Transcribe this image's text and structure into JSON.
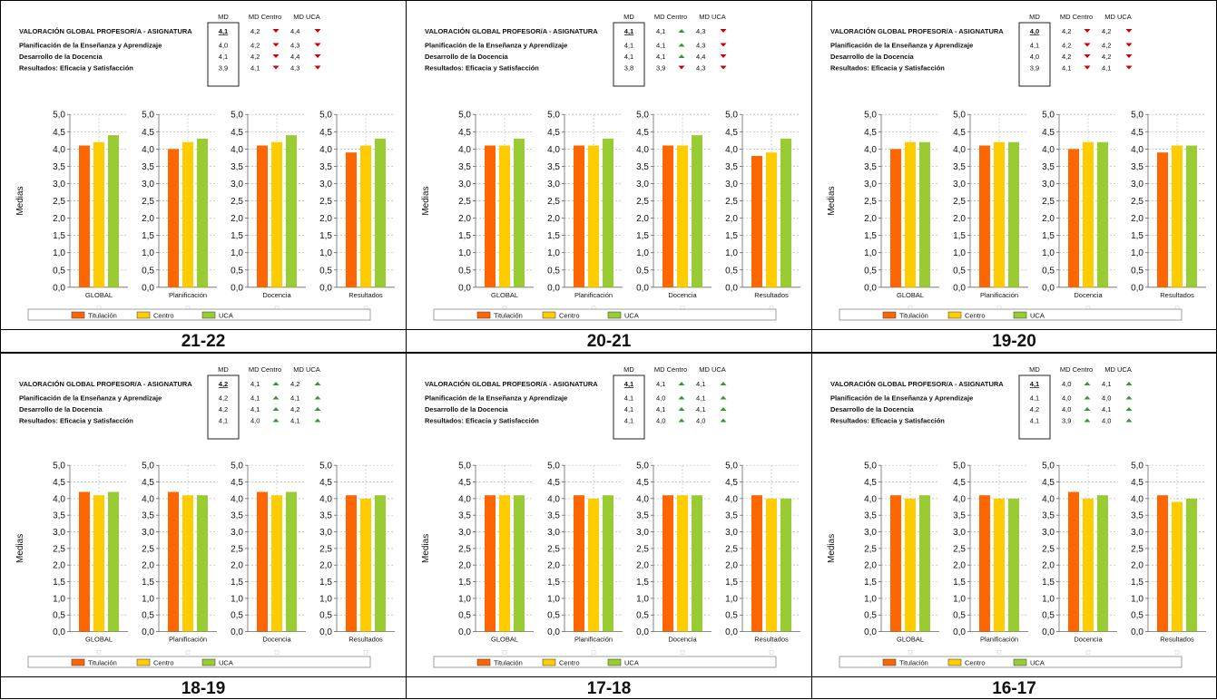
{
  "header_labels": {
    "md": "MD",
    "md_centro": "MD Centro",
    "md_uca": "MD UCA"
  },
  "row_labels": [
    "VALORACIÓN GLOBAL PROFESOR/A - ASIGNATURA",
    "Planificación de la Enseñanza y Aprendizaje",
    "Desarrollo de la Docencia",
    "Resultados: Eficacia y Satisfacción"
  ],
  "y_axis_label": "Medias",
  "placeholder_glyph": "□",
  "colors": {
    "Titulación": "#ff6600",
    "Centro": "#ffcc00",
    "UCA": "#99cc33",
    "arrow_up": "#339933",
    "arrow_down": "#cc0000"
  },
  "chart_data": [
    {
      "type": "bar",
      "year": "21-22",
      "categories": [
        "GLOBAL",
        "Planificación",
        "Docencia",
        "Resultados"
      ],
      "series": [
        {
          "name": "Titulación",
          "values": [
            4.1,
            4.0,
            4.1,
            3.9
          ]
        },
        {
          "name": "Centro",
          "values": [
            4.2,
            4.2,
            4.2,
            4.1
          ]
        },
        {
          "name": "UCA",
          "values": [
            4.4,
            4.3,
            4.4,
            4.3
          ]
        }
      ],
      "table": {
        "md": [
          "4,1",
          "4,0",
          "4,1",
          "3,9"
        ],
        "md_centro": [
          "4,2",
          "4,2",
          "4,2",
          "4,1"
        ],
        "centro_arrow": [
          "down",
          "down",
          "down",
          "down"
        ],
        "md_uca": [
          "4,4",
          "4,3",
          "4,4",
          "4,3"
        ],
        "uca_arrow": [
          "down",
          "down",
          "down",
          "down"
        ]
      },
      "ylim": [
        0,
        5
      ],
      "yticks": [
        "0,0",
        "0,5",
        "1,0",
        "1,5",
        "2,0",
        "2,5",
        "3,0",
        "3,5",
        "4,0",
        "4,5",
        "5,0"
      ],
      "ylabel": "Medias",
      "legend": [
        "Titulación",
        "Centro",
        "UCA"
      ]
    },
    {
      "type": "bar",
      "year": "20-21",
      "categories": [
        "GLOBAL",
        "Planificación",
        "Docencia",
        "Resultados"
      ],
      "series": [
        {
          "name": "Titulación",
          "values": [
            4.1,
            4.1,
            4.1,
            3.8
          ]
        },
        {
          "name": "Centro",
          "values": [
            4.1,
            4.1,
            4.1,
            3.9
          ]
        },
        {
          "name": "UCA",
          "values": [
            4.3,
            4.3,
            4.4,
            4.3
          ]
        }
      ],
      "table": {
        "md": [
          "4,1",
          "4,1",
          "4,1",
          "3,8"
        ],
        "md_centro": [
          "4,1",
          "4,1",
          "4,1",
          "3,9"
        ],
        "centro_arrow": [
          "up",
          "up",
          "up",
          "down"
        ],
        "md_uca": [
          "4,3",
          "4,3",
          "4,4",
          "4,3"
        ],
        "uca_arrow": [
          "down",
          "down",
          "down",
          "down"
        ]
      },
      "ylim": [
        0,
        5
      ],
      "yticks": [
        "0,0",
        "0,5",
        "1,0",
        "1,5",
        "2,0",
        "2,5",
        "3,0",
        "3,5",
        "4,0",
        "4,5",
        "5,0"
      ],
      "ylabel": "Medias",
      "legend": [
        "Titulación",
        "Centro",
        "UCA"
      ]
    },
    {
      "type": "bar",
      "year": "19-20",
      "categories": [
        "GLOBAL",
        "Planificación",
        "Docencia",
        "Resultados"
      ],
      "series": [
        {
          "name": "Titulación",
          "values": [
            4.0,
            4.1,
            4.0,
            3.9
          ]
        },
        {
          "name": "Centro",
          "values": [
            4.2,
            4.2,
            4.2,
            4.1
          ]
        },
        {
          "name": "UCA",
          "values": [
            4.2,
            4.2,
            4.2,
            4.1
          ]
        }
      ],
      "table": {
        "md": [
          "4,0",
          "4,1",
          "4,0",
          "3,9"
        ],
        "md_centro": [
          "4,2",
          "4,2",
          "4,2",
          "4,1"
        ],
        "centro_arrow": [
          "down",
          "down",
          "down",
          "down"
        ],
        "md_uca": [
          "4,2",
          "4,2",
          "4,2",
          "4,1"
        ],
        "uca_arrow": [
          "down",
          "down",
          "down",
          "down"
        ]
      },
      "ylim": [
        0,
        5
      ],
      "yticks": [
        "0,0",
        "0,5",
        "1,0",
        "1,5",
        "2,0",
        "2,5",
        "3,0",
        "3,5",
        "4,0",
        "4,5",
        "5,0"
      ],
      "ylabel": "Medias",
      "legend": [
        "Titulación",
        "Centro",
        "UCA"
      ]
    },
    {
      "type": "bar",
      "year": "18-19",
      "categories": [
        "GLOBAL",
        "Planificación",
        "Docencia",
        "Resultados"
      ],
      "series": [
        {
          "name": "Titulación",
          "values": [
            4.2,
            4.2,
            4.2,
            4.1
          ]
        },
        {
          "name": "Centro",
          "values": [
            4.1,
            4.1,
            4.1,
            4.0
          ]
        },
        {
          "name": "UCA",
          "values": [
            4.2,
            4.1,
            4.2,
            4.1
          ]
        }
      ],
      "table": {
        "md": [
          "4,2",
          "4,2",
          "4,2",
          "4,1"
        ],
        "md_centro": [
          "4,1",
          "4,1",
          "4,1",
          "4,0"
        ],
        "centro_arrow": [
          "up",
          "up",
          "up",
          "up"
        ],
        "md_uca": [
          "4,2",
          "4,1",
          "4,2",
          "4,1"
        ],
        "uca_arrow": [
          "up",
          "up",
          "up",
          "up"
        ]
      },
      "ylim": [
        0,
        5
      ],
      "yticks": [
        "0,0",
        "0,5",
        "1,0",
        "1,5",
        "2,0",
        "2,5",
        "3,0",
        "3,5",
        "4,0",
        "4,5",
        "5,0"
      ],
      "ylabel": "Medias",
      "legend": [
        "Titulación",
        "Centro",
        "UCA"
      ]
    },
    {
      "type": "bar",
      "year": "17-18",
      "categories": [
        "GLOBAL",
        "Planificación",
        "Docencia",
        "Resultados"
      ],
      "series": [
        {
          "name": "Titulación",
          "values": [
            4.1,
            4.1,
            4.1,
            4.1
          ]
        },
        {
          "name": "Centro",
          "values": [
            4.1,
            4.0,
            4.1,
            4.0
          ]
        },
        {
          "name": "UCA",
          "values": [
            4.1,
            4.1,
            4.1,
            4.0
          ]
        }
      ],
      "table": {
        "md": [
          "4,1",
          "4,1",
          "4,1",
          "4,1"
        ],
        "md_centro": [
          "4,1",
          "4,0",
          "4,1",
          "4,0"
        ],
        "centro_arrow": [
          "up",
          "up",
          "up",
          "up"
        ],
        "md_uca": [
          "4,1",
          "4,1",
          "4,1",
          "4,0"
        ],
        "uca_arrow": [
          "up",
          "up",
          "up",
          "up"
        ]
      },
      "ylim": [
        0,
        5
      ],
      "yticks": [
        "0,0",
        "0,5",
        "1,0",
        "1,5",
        "2,0",
        "2,5",
        "3,0",
        "3,5",
        "4,0",
        "4,5",
        "5,0"
      ],
      "ylabel": "Medias",
      "legend": [
        "Titulación",
        "Centro",
        "UCA"
      ]
    },
    {
      "type": "bar",
      "year": "16-17",
      "categories": [
        "GLOBAL",
        "Planificación",
        "Docencia",
        "Resultados"
      ],
      "series": [
        {
          "name": "Titulación",
          "values": [
            4.1,
            4.1,
            4.2,
            4.1
          ]
        },
        {
          "name": "Centro",
          "values": [
            4.0,
            4.0,
            4.0,
            3.9
          ]
        },
        {
          "name": "UCA",
          "values": [
            4.1,
            4.0,
            4.1,
            4.0
          ]
        }
      ],
      "table": {
        "md": [
          "4,1",
          "4,1",
          "4,2",
          "4,1"
        ],
        "md_centro": [
          "4,0",
          "4,0",
          "4,0",
          "3,9"
        ],
        "centro_arrow": [
          "up",
          "up",
          "up",
          "up"
        ],
        "md_uca": [
          "4,1",
          "4,0",
          "4,1",
          "4,0"
        ],
        "uca_arrow": [
          "up",
          "up",
          "up",
          "up"
        ]
      },
      "ylim": [
        0,
        5
      ],
      "yticks": [
        "0,0",
        "0,5",
        "1,0",
        "1,5",
        "2,0",
        "2,5",
        "3,0",
        "3,5",
        "4,0",
        "4,5",
        "5,0"
      ],
      "ylabel": "Medias",
      "legend": [
        "Titulación",
        "Centro",
        "UCA"
      ]
    }
  ]
}
